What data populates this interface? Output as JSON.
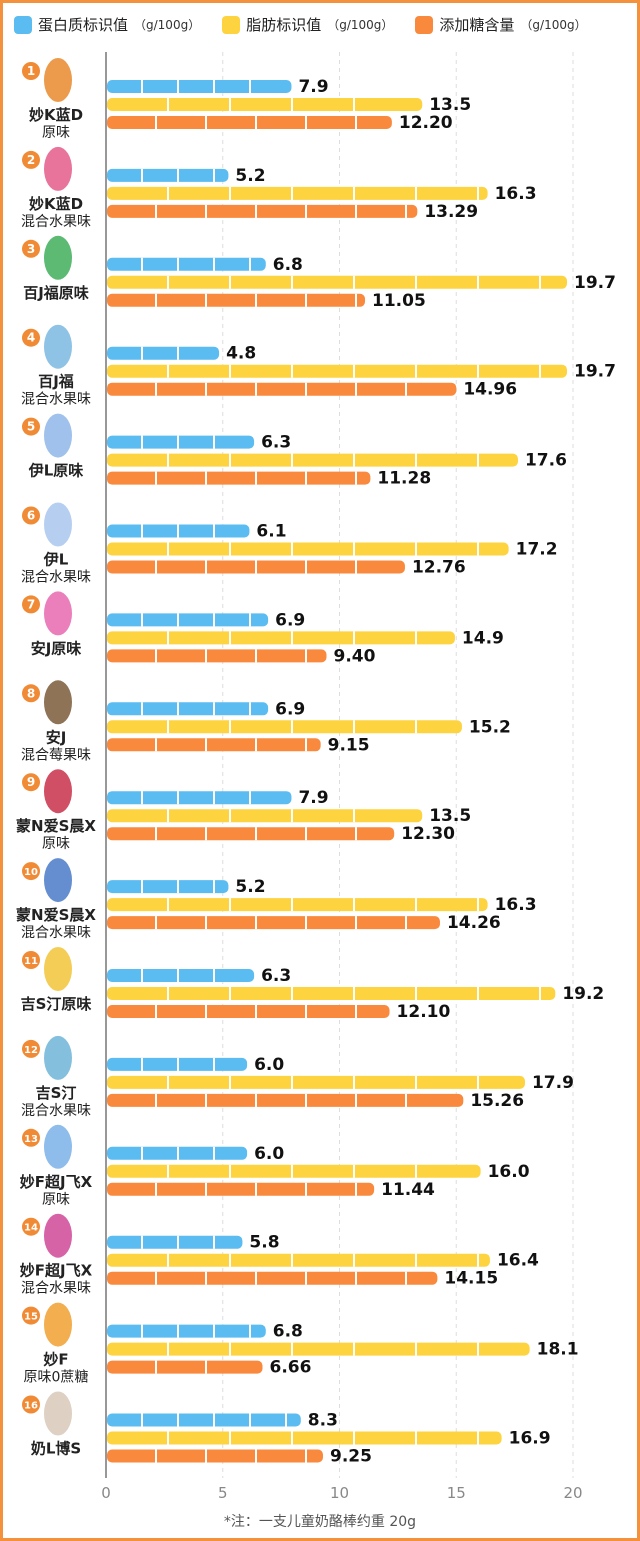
{
  "chart_data": {
    "type": "bar",
    "orientation": "horizontal",
    "categories": [
      {
        "rank": "1",
        "name": [
          "妙K蓝D",
          "原味"
        ]
      },
      {
        "rank": "2",
        "name": [
          "妙K蓝D",
          "混合水果味"
        ]
      },
      {
        "rank": "3",
        "name": [
          "百J福原味"
        ]
      },
      {
        "rank": "4",
        "name": [
          "百J福",
          "混合水果味"
        ]
      },
      {
        "rank": "5",
        "name": [
          "伊L原味"
        ]
      },
      {
        "rank": "6",
        "name": [
          "伊L",
          "混合水果味"
        ]
      },
      {
        "rank": "7",
        "name": [
          "安J原味"
        ]
      },
      {
        "rank": "8",
        "name": [
          "安J",
          "混合莓果味"
        ]
      },
      {
        "rank": "9",
        "name": [
          "蒙N爱S晨X",
          "原味"
        ]
      },
      {
        "rank": "10",
        "name": [
          "蒙N爱S晨X",
          "混合水果味"
        ]
      },
      {
        "rank": "11",
        "name": [
          "吉S汀原味"
        ]
      },
      {
        "rank": "12",
        "name": [
          "吉S汀",
          "混合水果味"
        ]
      },
      {
        "rank": "13",
        "name": [
          "妙F超J飞X",
          "原味"
        ]
      },
      {
        "rank": "14",
        "name": [
          "妙F超J飞X",
          "混合水果味"
        ]
      },
      {
        "rank": "15",
        "name": [
          "妙F",
          "原味0蔗糖"
        ]
      },
      {
        "rank": "16",
        "name": [
          "奶L博S"
        ]
      }
    ],
    "series": [
      {
        "name": "蛋白质标识值",
        "unit": "（g/100g）",
        "color": "#5bbcf2",
        "values": [
          "7.9",
          "5.2",
          "6.8",
          "4.8",
          "6.3",
          "6.1",
          "6.9",
          "6.9",
          "7.9",
          "5.2",
          "6.3",
          "6.0",
          "6.0",
          "5.8",
          "6.8",
          "8.3"
        ]
      },
      {
        "name": "脂肪标识值",
        "unit": "（g/100g）",
        "color": "#fdd33f",
        "values": [
          "13.5",
          "16.3",
          "19.7",
          "19.7",
          "17.6",
          "17.2",
          "14.9",
          "15.2",
          "13.5",
          "16.3",
          "19.2",
          "17.9",
          "16.0",
          "16.4",
          "18.1",
          "16.9"
        ]
      },
      {
        "name": "添加糖含量",
        "unit": "（g/100g）",
        "color": "#f98a3d",
        "values": [
          "12.20",
          "13.29",
          "11.05",
          "14.96",
          "11.28",
          "12.76",
          "9.40",
          "9.15",
          "12.30",
          "14.26",
          "12.10",
          "15.26",
          "11.44",
          "14.15",
          "6.66",
          "9.25"
        ]
      }
    ],
    "xlim": [
      0,
      21
    ],
    "xticks": [
      "0",
      "5",
      "10",
      "15",
      "20"
    ],
    "grid": "vertical dashed",
    "legend": "top",
    "note": "*注：一支儿童奶酪棒约重 20g"
  }
}
